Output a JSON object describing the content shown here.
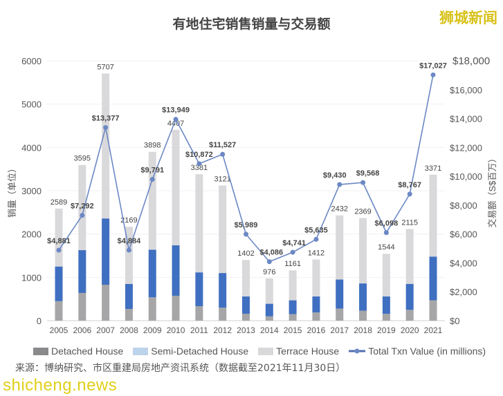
{
  "title": "有地住宅销售销量与交易额",
  "watermark_top": "狮城新闻",
  "watermark_bottom": "shicheng.news",
  "source": "来源：博纳研究、市区重建局房地产资讯系统（数据截至2021年11月30日）",
  "colors": {
    "detached": "#a6a6a8",
    "semi_detached": "#3f6fc0",
    "semi_detached_legend": "#bcd4ea",
    "terrace": "#d9d9dc",
    "line": "#6b88c4"
  },
  "chart_data": {
    "type": "bar",
    "title": "有地住宅销售销量与交易额",
    "categories": [
      "2005",
      "2006",
      "2007",
      "2008",
      "2009",
      "2010",
      "2011",
      "2012",
      "2013",
      "2014",
      "2015",
      "2016",
      "2017",
      "2018",
      "2019",
      "2020",
      "2021"
    ],
    "ylabel": "销量（单位）",
    "y2label": "交易额（S$百万）",
    "ylim": [
      0,
      6000
    ],
    "y2lim": [
      0,
      18000
    ],
    "yticks": [
      "0",
      "1000",
      "2000",
      "3000",
      "4000",
      "5000",
      "6000"
    ],
    "y2ticks": [
      "$0",
      "$2,000",
      "$4,000",
      "$6,000",
      "$8,000",
      "$10,000",
      "$12,000",
      "$14,000",
      "$16,000",
      "$18,000"
    ],
    "grid": true,
    "legend": "bottom",
    "series": [
      {
        "name": "Detached House",
        "values": [
          450,
          640,
          830,
          270,
          540,
          575,
          335,
          300,
          160,
          100,
          150,
          190,
          280,
          230,
          160,
          250,
          470
        ]
      },
      {
        "name": "Semi-Detached House",
        "values": [
          800,
          990,
          1530,
          580,
          1100,
          1165,
          780,
          800,
          400,
          290,
          320,
          370,
          670,
          630,
          400,
          600,
          1010
        ]
      },
      {
        "name": "Terrace House",
        "values": [
          1339,
          1965,
          3347,
          1319,
          2258,
          2667,
          2266,
          2021,
          842,
          586,
          691,
          852,
          1482,
          1509,
          984,
          1265,
          1891
        ]
      },
      {
        "name": "Total Txn Value (in millions)",
        "type": "line",
        "axis": "right",
        "values": [
          4881,
          7292,
          13377,
          4884,
          9791,
          13949,
          10872,
          11527,
          5989,
          4086,
          4741,
          5635,
          9430,
          9568,
          6098,
          8767,
          17027
        ]
      }
    ],
    "total_labels": [
      "2589",
      "3595",
      "5707",
      "2169",
      "3898",
      "4407",
      "3381",
      "3121",
      "1402",
      "976",
      "1161",
      "1412",
      "2432",
      "2369",
      "1544",
      "2115",
      "3371"
    ],
    "value_labels": [
      "$4,881",
      "$7,292",
      "$13,377",
      "$4,884",
      "$9,791",
      "$13,949",
      "$10,872",
      "$11,527",
      "$5,989",
      "$4,086",
      "$4,741",
      "$5,635",
      "$9,430",
      "$9,568",
      "$6,098",
      "$8,767",
      "$17,027"
    ]
  }
}
